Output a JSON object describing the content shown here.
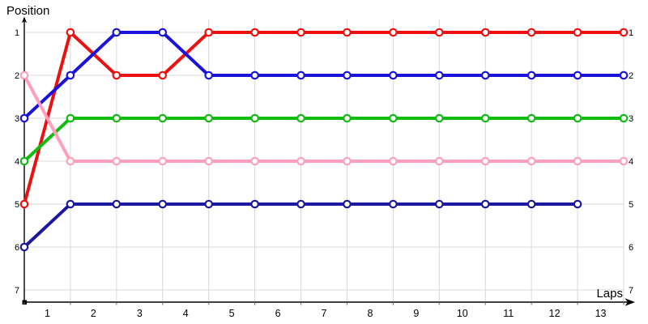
{
  "chart_data": {
    "type": "line",
    "title": "",
    "ylabel": "Position",
    "xlabel": "Laps",
    "x_tick_labels": [
      "1",
      "2",
      "3",
      "4",
      "5",
      "6",
      "7",
      "8",
      "9",
      "10",
      "11",
      "12",
      "13"
    ],
    "y_tick_labels_left": [
      "1",
      "2",
      "3",
      "4",
      "5",
      "6",
      "7"
    ],
    "y_tick_labels_right": [
      "1",
      "2",
      "3",
      "4",
      "5",
      "6",
      "7"
    ],
    "y_axis": {
      "inverted": true,
      "min": 1,
      "max": 7
    },
    "x_points_per_full_series": 14,
    "grid": true,
    "legend": "none",
    "series": [
      {
        "name": "navy-line",
        "color": "#1D18A0",
        "values": [
          6,
          5,
          5,
          5,
          5,
          5,
          5,
          5,
          5,
          5,
          5,
          5,
          5
        ]
      },
      {
        "name": "red-line",
        "color": "#EC1111",
        "values": [
          5,
          1,
          2,
          2,
          1,
          1,
          1,
          1,
          1,
          1,
          1,
          1,
          1,
          1
        ]
      },
      {
        "name": "blue-line",
        "color": "#1A13DC",
        "values": [
          3,
          2,
          1,
          1,
          2,
          2,
          2,
          2,
          2,
          2,
          2,
          2,
          2,
          2
        ]
      },
      {
        "name": "green-line",
        "color": "#10BC10",
        "values": [
          4,
          3,
          3,
          3,
          3,
          3,
          3,
          3,
          3,
          3,
          3,
          3,
          3,
          3
        ]
      },
      {
        "name": "pink-line",
        "color": "#FF9FBC",
        "values": [
          2,
          4,
          4,
          4,
          4,
          4,
          4,
          4,
          4,
          4,
          4,
          4,
          4,
          4
        ]
      }
    ],
    "marker": {
      "shape": "circle",
      "fill": "#FFFFFF"
    },
    "colors": {
      "grid": "#D9D9D9",
      "axis": "#000000",
      "tick": "#666666",
      "text": "#000000"
    }
  }
}
